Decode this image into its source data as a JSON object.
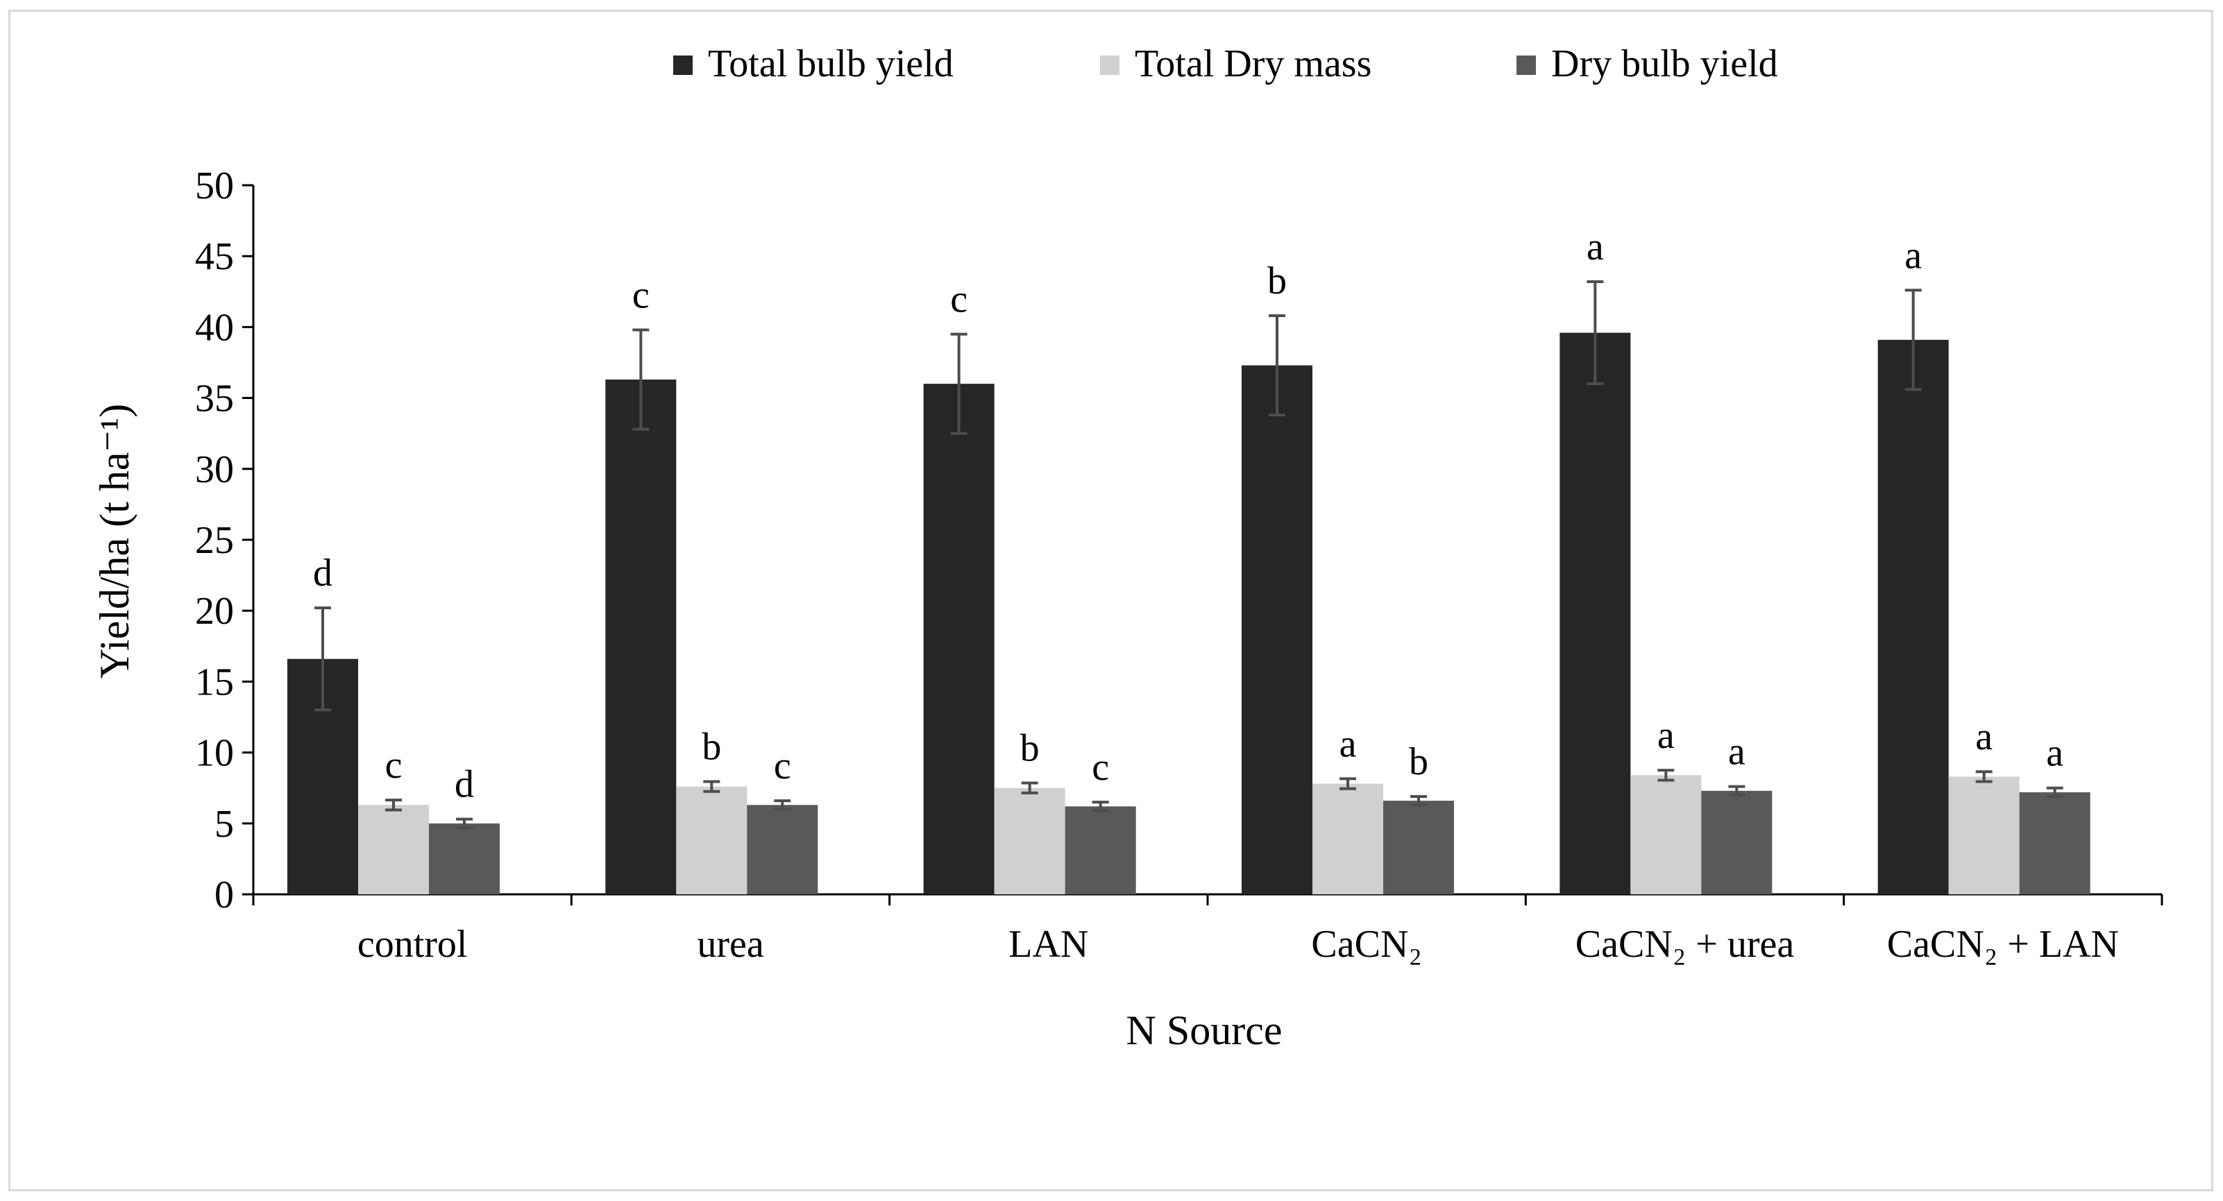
{
  "chart_data": {
    "type": "bar",
    "title": "",
    "xlabel": "N Source",
    "ylabel": "Yield/ha (t ha⁻¹)",
    "ylim": [
      0,
      50
    ],
    "yticks": [
      0,
      5,
      10,
      15,
      20,
      25,
      30,
      35,
      40,
      45,
      50
    ],
    "legend_position": "top-center",
    "grid": false,
    "categories": [
      "control",
      "urea",
      "LAN",
      "CaCN₂",
      "CaCN₂ + urea",
      "CaCN₂ + LAN"
    ],
    "series": [
      {
        "name": "Total bulb yield",
        "color": "#262626",
        "values": [
          16.6,
          36.3,
          36.0,
          37.3,
          39.6,
          39.1
        ],
        "errors": [
          3.6,
          3.5,
          3.5,
          3.5,
          3.6,
          3.5
        ],
        "letters": [
          "d",
          "c",
          "c",
          "b",
          "a",
          "a"
        ]
      },
      {
        "name": "Total Dry mass",
        "color": "#d0d0d0",
        "values": [
          6.3,
          7.6,
          7.5,
          7.8,
          8.4,
          8.3
        ],
        "errors": [
          0.35,
          0.35,
          0.35,
          0.35,
          0.35,
          0.35
        ],
        "letters": [
          "c",
          "b",
          "b",
          "a",
          "a",
          "a"
        ]
      },
      {
        "name": "Dry bulb yield",
        "color": "#595959",
        "values": [
          5.0,
          6.3,
          6.2,
          6.6,
          7.3,
          7.2
        ],
        "errors": [
          0.3,
          0.3,
          0.3,
          0.3,
          0.3,
          0.3
        ],
        "letters": [
          "d",
          "c",
          "c",
          "b",
          "a",
          "a"
        ]
      }
    ]
  }
}
